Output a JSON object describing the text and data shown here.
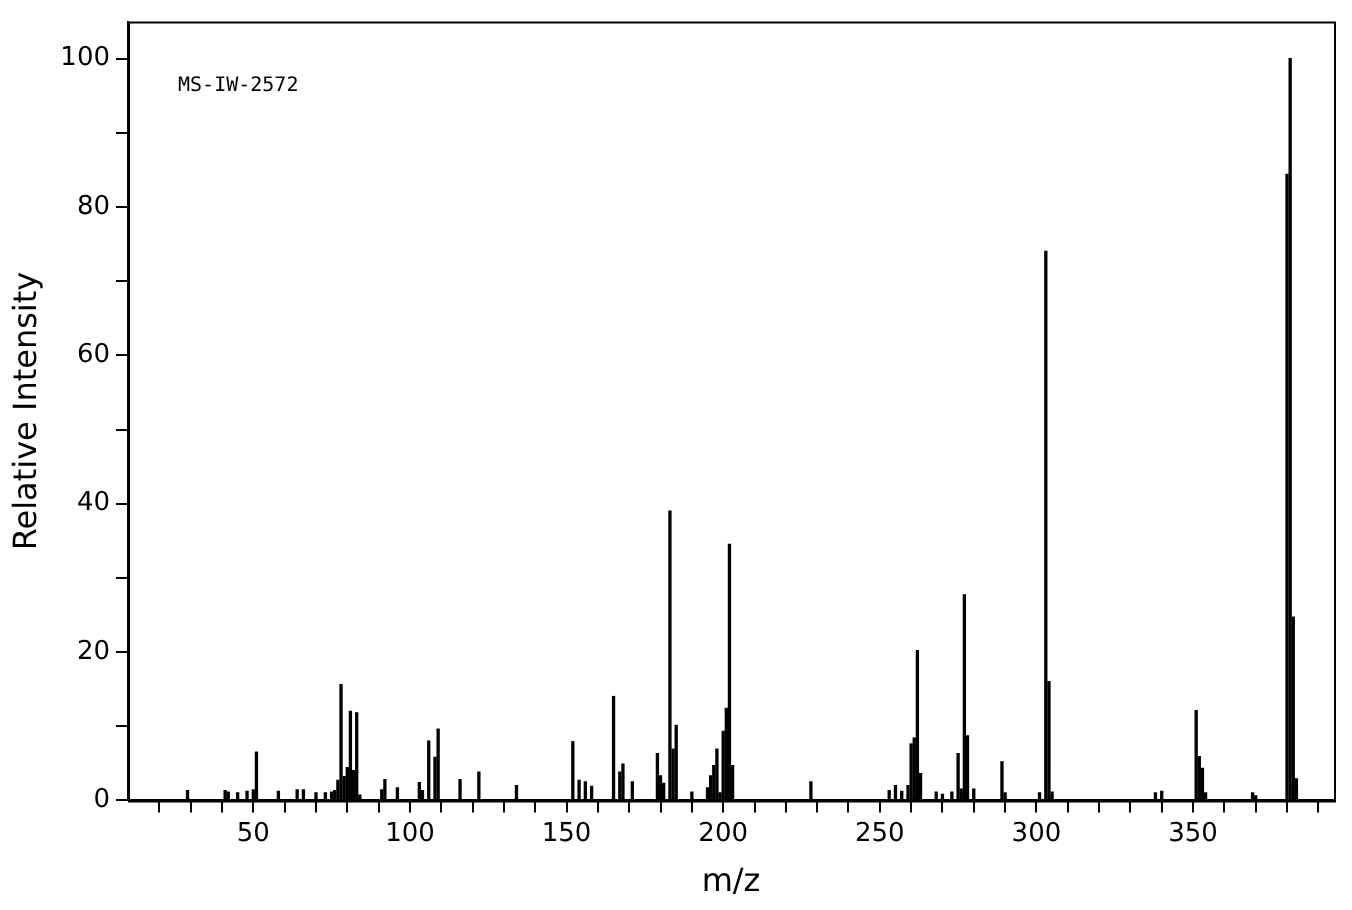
{
  "chart_data": {
    "type": "bar",
    "xlabel": "m/z",
    "ylabel": "Relative Intensity",
    "annotations": [
      "MS-IW-2572"
    ],
    "x": [
      29,
      41,
      42,
      45,
      48,
      50,
      51,
      58,
      64,
      66,
      70,
      73,
      75,
      76,
      77,
      78,
      79,
      80,
      81,
      82,
      83,
      84,
      91,
      92,
      96,
      103,
      104,
      106,
      108,
      109,
      116,
      122,
      134,
      152,
      154,
      156,
      158,
      165,
      167,
      168,
      171,
      179,
      180,
      181,
      183,
      184,
      185,
      190,
      195,
      196,
      197,
      198,
      199,
      200,
      201,
      202,
      203,
      228,
      253,
      255,
      257,
      259,
      260,
      261,
      262,
      263,
      268,
      270,
      273,
      275,
      276,
      277,
      278,
      280,
      289,
      290,
      301,
      303,
      304,
      305,
      338,
      340,
      351,
      352,
      353,
      354,
      369,
      370,
      380,
      381,
      382,
      383
    ],
    "values": [
      1.3,
      1.3,
      1.1,
      1,
      1.2,
      1.4,
      6.5,
      1.2,
      1.4,
      1.4,
      1,
      1,
      1.1,
      1.3,
      2.7,
      15.6,
      3.2,
      4.4,
      12,
      4,
      11.8,
      0.7,
      1.4,
      2.8,
      1.7,
      2.4,
      1.3,
      8,
      5.8,
      9.6,
      2.8,
      3.8,
      2,
      7.9,
      2.7,
      2.5,
      1.9,
      14,
      3.8,
      4.9,
      2.5,
      6.3,
      3.3,
      2.3,
      39,
      6.9,
      10.1,
      1.1,
      1.7,
      3.3,
      4.7,
      6.9,
      1,
      9.3,
      12.4,
      34.5,
      4.7,
      2.5,
      1.3,
      2,
      1.2,
      2,
      7.6,
      8.4,
      20.2,
      3.6,
      1.1,
      0.8,
      1.1,
      6.3,
      1.5,
      27.7,
      8.7,
      1.5,
      5.2,
      1,
      1,
      74,
      16,
      1.1,
      1,
      1.2,
      12.1,
      5.9,
      4.3,
      1,
      1,
      0.6,
      84.4,
      100,
      24.7,
      2.9
    ],
    "color": "#000000",
    "xlim": [
      10,
      395
    ],
    "xticks": [
      {
        "value": 20,
        "label": null
      },
      {
        "value": 30,
        "label": null
      },
      {
        "value": 40,
        "label": null
      },
      50,
      {
        "value": 60,
        "label": null
      },
      {
        "value": 70,
        "label": null
      },
      {
        "value": 80,
        "label": null
      },
      {
        "value": 90,
        "label": null
      },
      100,
      {
        "value": 110,
        "label": null
      },
      {
        "value": 120,
        "label": null
      },
      {
        "value": 130,
        "label": null
      },
      {
        "value": 140,
        "label": null
      },
      150,
      {
        "value": 160,
        "label": null
      },
      {
        "value": 170,
        "label": null
      },
      {
        "value": 180,
        "label": null
      },
      {
        "value": 190,
        "label": null
      },
      200,
      {
        "value": 210,
        "label": null
      },
      {
        "value": 220,
        "label": null
      },
      {
        "value": 230,
        "label": null
      },
      {
        "value": 240,
        "label": null
      },
      250,
      {
        "value": 260,
        "label": null
      },
      {
        "value": 270,
        "label": null
      },
      {
        "value": 280,
        "label": null
      },
      {
        "value": 290,
        "label": null
      },
      300,
      {
        "value": 310,
        "label": null
      },
      {
        "value": 320,
        "label": null
      },
      {
        "value": 330,
        "label": null
      },
      {
        "value": 340,
        "label": null
      },
      350,
      {
        "value": 360,
        "label": null
      },
      {
        "value": 370,
        "label": null
      },
      {
        "value": 380,
        "label": null
      },
      {
        "value": 390,
        "label": null
      }
    ],
    "ylim": [
      0,
      105
    ],
    "yticks": [
      0,
      {
        "value": 10,
        "label": null
      },
      20,
      {
        "value": 30,
        "label": null
      },
      40,
      {
        "value": 50,
        "label": null
      },
      60,
      {
        "value": 70,
        "label": null
      },
      80,
      {
        "value": 90,
        "label": null
      },
      100
    ]
  }
}
